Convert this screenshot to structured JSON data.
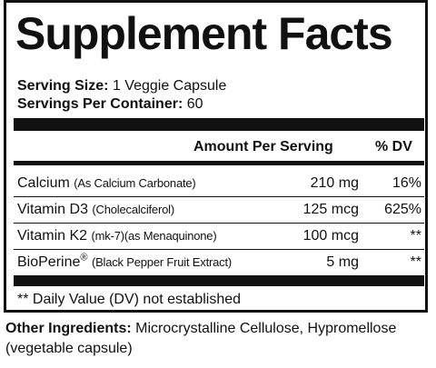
{
  "label": {
    "title": "Supplement Facts",
    "serving_size_label": "Serving Size:",
    "serving_size_value": "1 Veggie Capsule",
    "servings_per_container_label": "Servings Per Container:",
    "servings_per_container_value": "60",
    "header_amount": "Amount Per Serving",
    "header_dv": "% DV",
    "rows": [
      {
        "name": "Calcium",
        "sub": "(As Calcium Carbonate)",
        "amount": "210 mg",
        "dv": "16%"
      },
      {
        "name": "Vitamin D3",
        "sub": "(Cholecalciferol)",
        "amount": "125 mcg",
        "dv": "625%"
      },
      {
        "name": "Vitamin K2",
        "sub": "(mk-7)(as Menaquinone)",
        "amount": "100 mcg",
        "dv": "**"
      },
      {
        "name": "BioPerine",
        "mark": "®",
        "sub": "(Black Pepper Fruit Extract)",
        "amount": "5 mg",
        "dv": "**"
      }
    ],
    "footnote": "** Daily Value (DV) not established"
  },
  "other_ingredients": {
    "label": "Other Ingredients:",
    "text": "Microcrystalline Cellulose, Hypromellose (vegetable capsule)"
  }
}
